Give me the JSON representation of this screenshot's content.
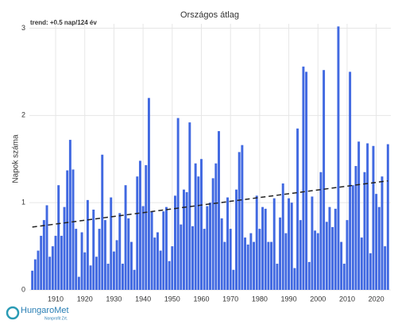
{
  "chart_data": {
    "type": "bar",
    "title": "Országos átlag",
    "annotation": "trend: +0.5 nap/124 év",
    "y_label": "Napok száma",
    "logo": "HungaroMet",
    "logo_sub": "Nonprofit Zrt.",
    "color": "#4169e1",
    "x": [
      1902,
      1903,
      1904,
      1905,
      1906,
      1907,
      1908,
      1909,
      1910,
      1911,
      1912,
      1913,
      1914,
      1915,
      1916,
      1917,
      1918,
      1919,
      1920,
      1921,
      1922,
      1923,
      1924,
      1925,
      1926,
      1927,
      1928,
      1929,
      1930,
      1931,
      1932,
      1933,
      1934,
      1935,
      1936,
      1937,
      1938,
      1939,
      1940,
      1941,
      1942,
      1943,
      1944,
      1945,
      1946,
      1947,
      1948,
      1949,
      1950,
      1951,
      1952,
      1953,
      1954,
      1955,
      1956,
      1957,
      1958,
      1959,
      1960,
      1961,
      1962,
      1963,
      1964,
      1965,
      1966,
      1967,
      1968,
      1969,
      1970,
      1971,
      1972,
      1973,
      1974,
      1975,
      1976,
      1977,
      1978,
      1979,
      1980,
      1981,
      1982,
      1983,
      1984,
      1985,
      1986,
      1987,
      1988,
      1989,
      1990,
      1991,
      1992,
      1993,
      1994,
      1995,
      1996,
      1997,
      1998,
      1999,
      2000,
      2001,
      2002,
      2003,
      2004,
      2005,
      2006,
      2007,
      2008,
      2009,
      2010,
      2011,
      2012,
      2013,
      2014,
      2015,
      2016,
      2017,
      2018,
      2019,
      2020,
      2021,
      2022,
      2023,
      2024
    ],
    "values": [
      0.22,
      0.35,
      0.45,
      0.62,
      0.8,
      0.97,
      0.38,
      0.5,
      0.62,
      1.2,
      0.62,
      0.95,
      1.37,
      1.72,
      1.38,
      0.7,
      0.15,
      0.66,
      0.43,
      1.03,
      0.28,
      0.92,
      0.38,
      0.7,
      1.55,
      0.8,
      0.3,
      1.06,
      0.44,
      0.57,
      0.88,
      0.3,
      1.2,
      0.82,
      0.55,
      0.23,
      1.3,
      1.48,
      0.96,
      1.43,
      2.2,
      0.9,
      0.6,
      0.66,
      0.45,
      0.9,
      0.95,
      0.33,
      0.5,
      1.08,
      1.97,
      0.75,
      1.15,
      1.12,
      1.92,
      0.73,
      1.45,
      1.3,
      1.5,
      0.7,
      0.96,
      1.0,
      1.28,
      1.45,
      1.82,
      0.82,
      0.55,
      1.06,
      0.7,
      0.23,
      1.15,
      1.58,
      1.66,
      0.6,
      0.52,
      0.65,
      0.55,
      1.08,
      0.7,
      0.95,
      0.93,
      0.55,
      0.55,
      1.05,
      0.3,
      0.83,
      1.22,
      0.65,
      1.05,
      1.0,
      0.25,
      1.85,
      0.8,
      2.56,
      2.5,
      0.32,
      1.07,
      0.68,
      0.65,
      1.35,
      2.52,
      0.78,
      0.95,
      0.72,
      0.93,
      3.02,
      0.55,
      0.3,
      0.8,
      2.5,
      1.2,
      1.42,
      1.7,
      0.6,
      1.35,
      1.68,
      0.42,
      1.65,
      1.1,
      0.95,
      1.3,
      0.5,
      1.67
    ],
    "trend": {
      "x": [
        1902,
        2024
      ],
      "values": [
        0.72,
        1.25
      ]
    },
    "xlim": [
      1901,
      2025
    ],
    "xticks": [
      1910,
      1920,
      1930,
      1940,
      1950,
      1960,
      1970,
      1980,
      1990,
      2000,
      2010,
      2020
    ],
    "ylim": [
      0,
      3.05
    ],
    "yticks": [
      0,
      1,
      2,
      3
    ],
    "grid": true
  }
}
